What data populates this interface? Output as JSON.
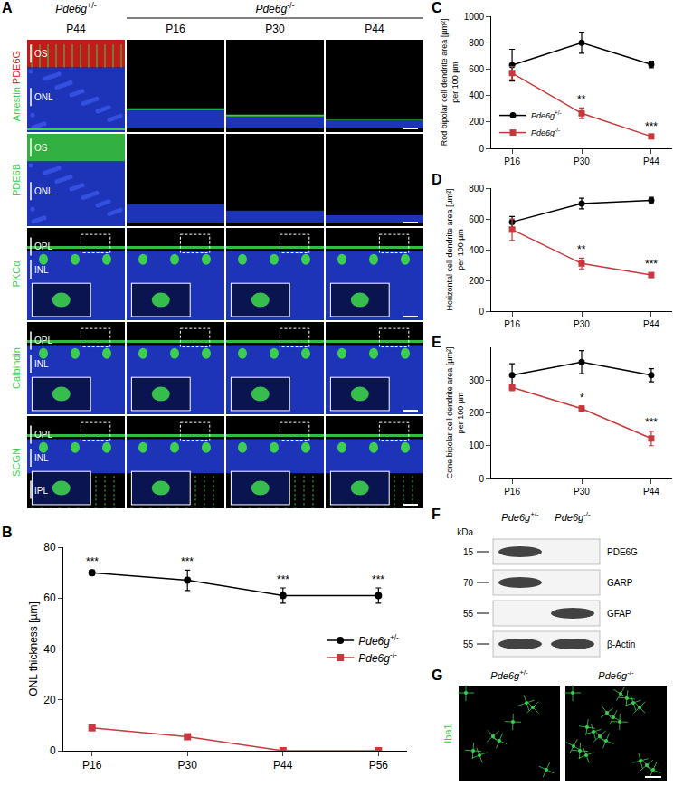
{
  "panel_A": {
    "label": "A",
    "genotypes": [
      {
        "text": "Pde6g+/-",
        "columns": 1
      },
      {
        "text": "Pde6g-/-",
        "columns": 3
      }
    ],
    "ages": [
      "P44",
      "P16",
      "P30",
      "P44"
    ],
    "rows": [
      {
        "stains": [
          {
            "text": "Arrestin",
            "color": "#3ccf4e"
          },
          {
            "text": "PDE6G",
            "color": "#e02020"
          }
        ],
        "layers": [
          "OS",
          "ONL"
        ]
      },
      {
        "stains": [
          {
            "text": "PDE6B",
            "color": "#3ccf4e"
          }
        ],
        "layers": [
          "OS",
          "ONL"
        ]
      },
      {
        "stains": [
          {
            "text": "PKCα",
            "color": "#3ccf4e"
          }
        ],
        "layers": [
          "OPL",
          "INL"
        ]
      },
      {
        "stains": [
          {
            "text": "Calbindin",
            "color": "#3ccf4e"
          }
        ],
        "layers": [
          "OPL",
          "INL"
        ]
      },
      {
        "stains": [
          {
            "text": "SCGN",
            "color": "#3ccf4e"
          }
        ],
        "layers": [
          "OPL",
          "INL",
          "IPL"
        ]
      }
    ]
  },
  "chart_data": [
    {
      "panel": "B",
      "type": "line",
      "categories": [
        "P16",
        "P30",
        "P44",
        "P56"
      ],
      "ylabel": "ONL thickness [µm]",
      "ylim": [
        0,
        80
      ],
      "yticks": [
        0,
        20,
        40,
        60,
        80
      ],
      "legend": "center right",
      "series": [
        {
          "name": "Pde6g+/-",
          "color": "#000000",
          "marker": "circle",
          "values": [
            70,
            67,
            61,
            61
          ],
          "errors": [
            1,
            4,
            3,
            3
          ]
        },
        {
          "name": "Pde6g-/-",
          "color": "#c8383c",
          "marker": "square",
          "values": [
            9,
            5.5,
            0,
            0
          ],
          "errors": [
            0.5,
            0.5,
            0,
            0
          ]
        }
      ],
      "annotations": [
        {
          "x": "P16",
          "y": 71,
          "text": "***"
        },
        {
          "x": "P30",
          "y": 71,
          "text": "***"
        },
        {
          "x": "P44",
          "y": 64,
          "text": "***"
        },
        {
          "x": "P56",
          "y": 64,
          "text": "***"
        }
      ]
    },
    {
      "panel": "C",
      "type": "line",
      "categories": [
        "P16",
        "P30",
        "P44"
      ],
      "ylabel": "Rod bipolar cell dendrite area [µm²]\nper 100 µm",
      "ylim": [
        0,
        1000
      ],
      "yticks": [
        0,
        200,
        400,
        600,
        800,
        1000
      ],
      "legend": "lower left",
      "series": [
        {
          "name": "Pde6g+/-",
          "color": "#000000",
          "marker": "circle",
          "values": [
            630,
            800,
            635
          ],
          "errors": [
            120,
            80,
            25
          ]
        },
        {
          "name": "Pde6g-/-",
          "color": "#c8383c",
          "marker": "square",
          "values": [
            570,
            265,
            90
          ],
          "errors": [
            50,
            40,
            10
          ]
        }
      ],
      "annotations": [
        {
          "x": "P30",
          "y": 310,
          "text": "**"
        },
        {
          "x": "P44",
          "y": 105,
          "text": "***"
        }
      ]
    },
    {
      "panel": "D",
      "type": "line",
      "categories": [
        "P16",
        "P30",
        "P44"
      ],
      "ylabel": "Horizontal cell dendrite area [µm²]\nper 100 µm",
      "ylim": [
        0,
        800
      ],
      "yticks": [
        0,
        200,
        400,
        600,
        800
      ],
      "series": [
        {
          "name": "Pde6g+/-",
          "color": "#000000",
          "marker": "circle",
          "values": [
            580,
            700,
            720
          ],
          "errors": [
            35,
            35,
            20
          ]
        },
        {
          "name": "Pde6g-/-",
          "color": "#c8383c",
          "marker": "square",
          "values": [
            530,
            310,
            235
          ],
          "errors": [
            70,
            35,
            15
          ]
        }
      ],
      "annotations": [
        {
          "x": "P30",
          "y": 348,
          "text": "**"
        },
        {
          "x": "P44",
          "y": 252,
          "text": "***"
        }
      ]
    },
    {
      "panel": "E",
      "type": "line",
      "categories": [
        "P16",
        "P30",
        "P44"
      ],
      "ylabel": "Cone bipolar cell dendrite area [µm²]\nper 100 µm",
      "ylim": [
        0,
        400
      ],
      "yticks": [
        0,
        100,
        200,
        300
      ],
      "series": [
        {
          "name": "Pde6g+/-",
          "color": "#000000",
          "marker": "circle",
          "values": [
            315,
            355,
            315
          ],
          "errors": [
            35,
            35,
            20
          ]
        },
        {
          "name": "Pde6g-/-",
          "color": "#c8383c",
          "marker": "square",
          "values": [
            278,
            213,
            122
          ],
          "errors": [
            10,
            8,
            22
          ]
        }
      ],
      "annotations": [
        {
          "x": "P30",
          "y": 222,
          "text": "*"
        },
        {
          "x": "P44",
          "y": 146,
          "text": "***"
        }
      ]
    }
  ],
  "panel_F": {
    "label": "F",
    "lanes": [
      "Pde6g+/-",
      "Pde6g-/-"
    ],
    "unit": "kDa",
    "blots": [
      {
        "protein": "PDE6G",
        "kDa": 15,
        "bands": [
          true,
          false
        ]
      },
      {
        "protein": "GARP",
        "kDa": 70,
        "bands": [
          true,
          false
        ]
      },
      {
        "protein": "GFAP",
        "kDa": 55,
        "bands": [
          false,
          true
        ]
      },
      {
        "protein": "β-Actin",
        "kDa": 55,
        "bands": [
          true,
          true
        ]
      }
    ]
  },
  "panel_G": {
    "label": "G",
    "stain": "Iba1",
    "lanes": [
      "Pde6g+/-",
      "Pde6g-/-"
    ]
  }
}
